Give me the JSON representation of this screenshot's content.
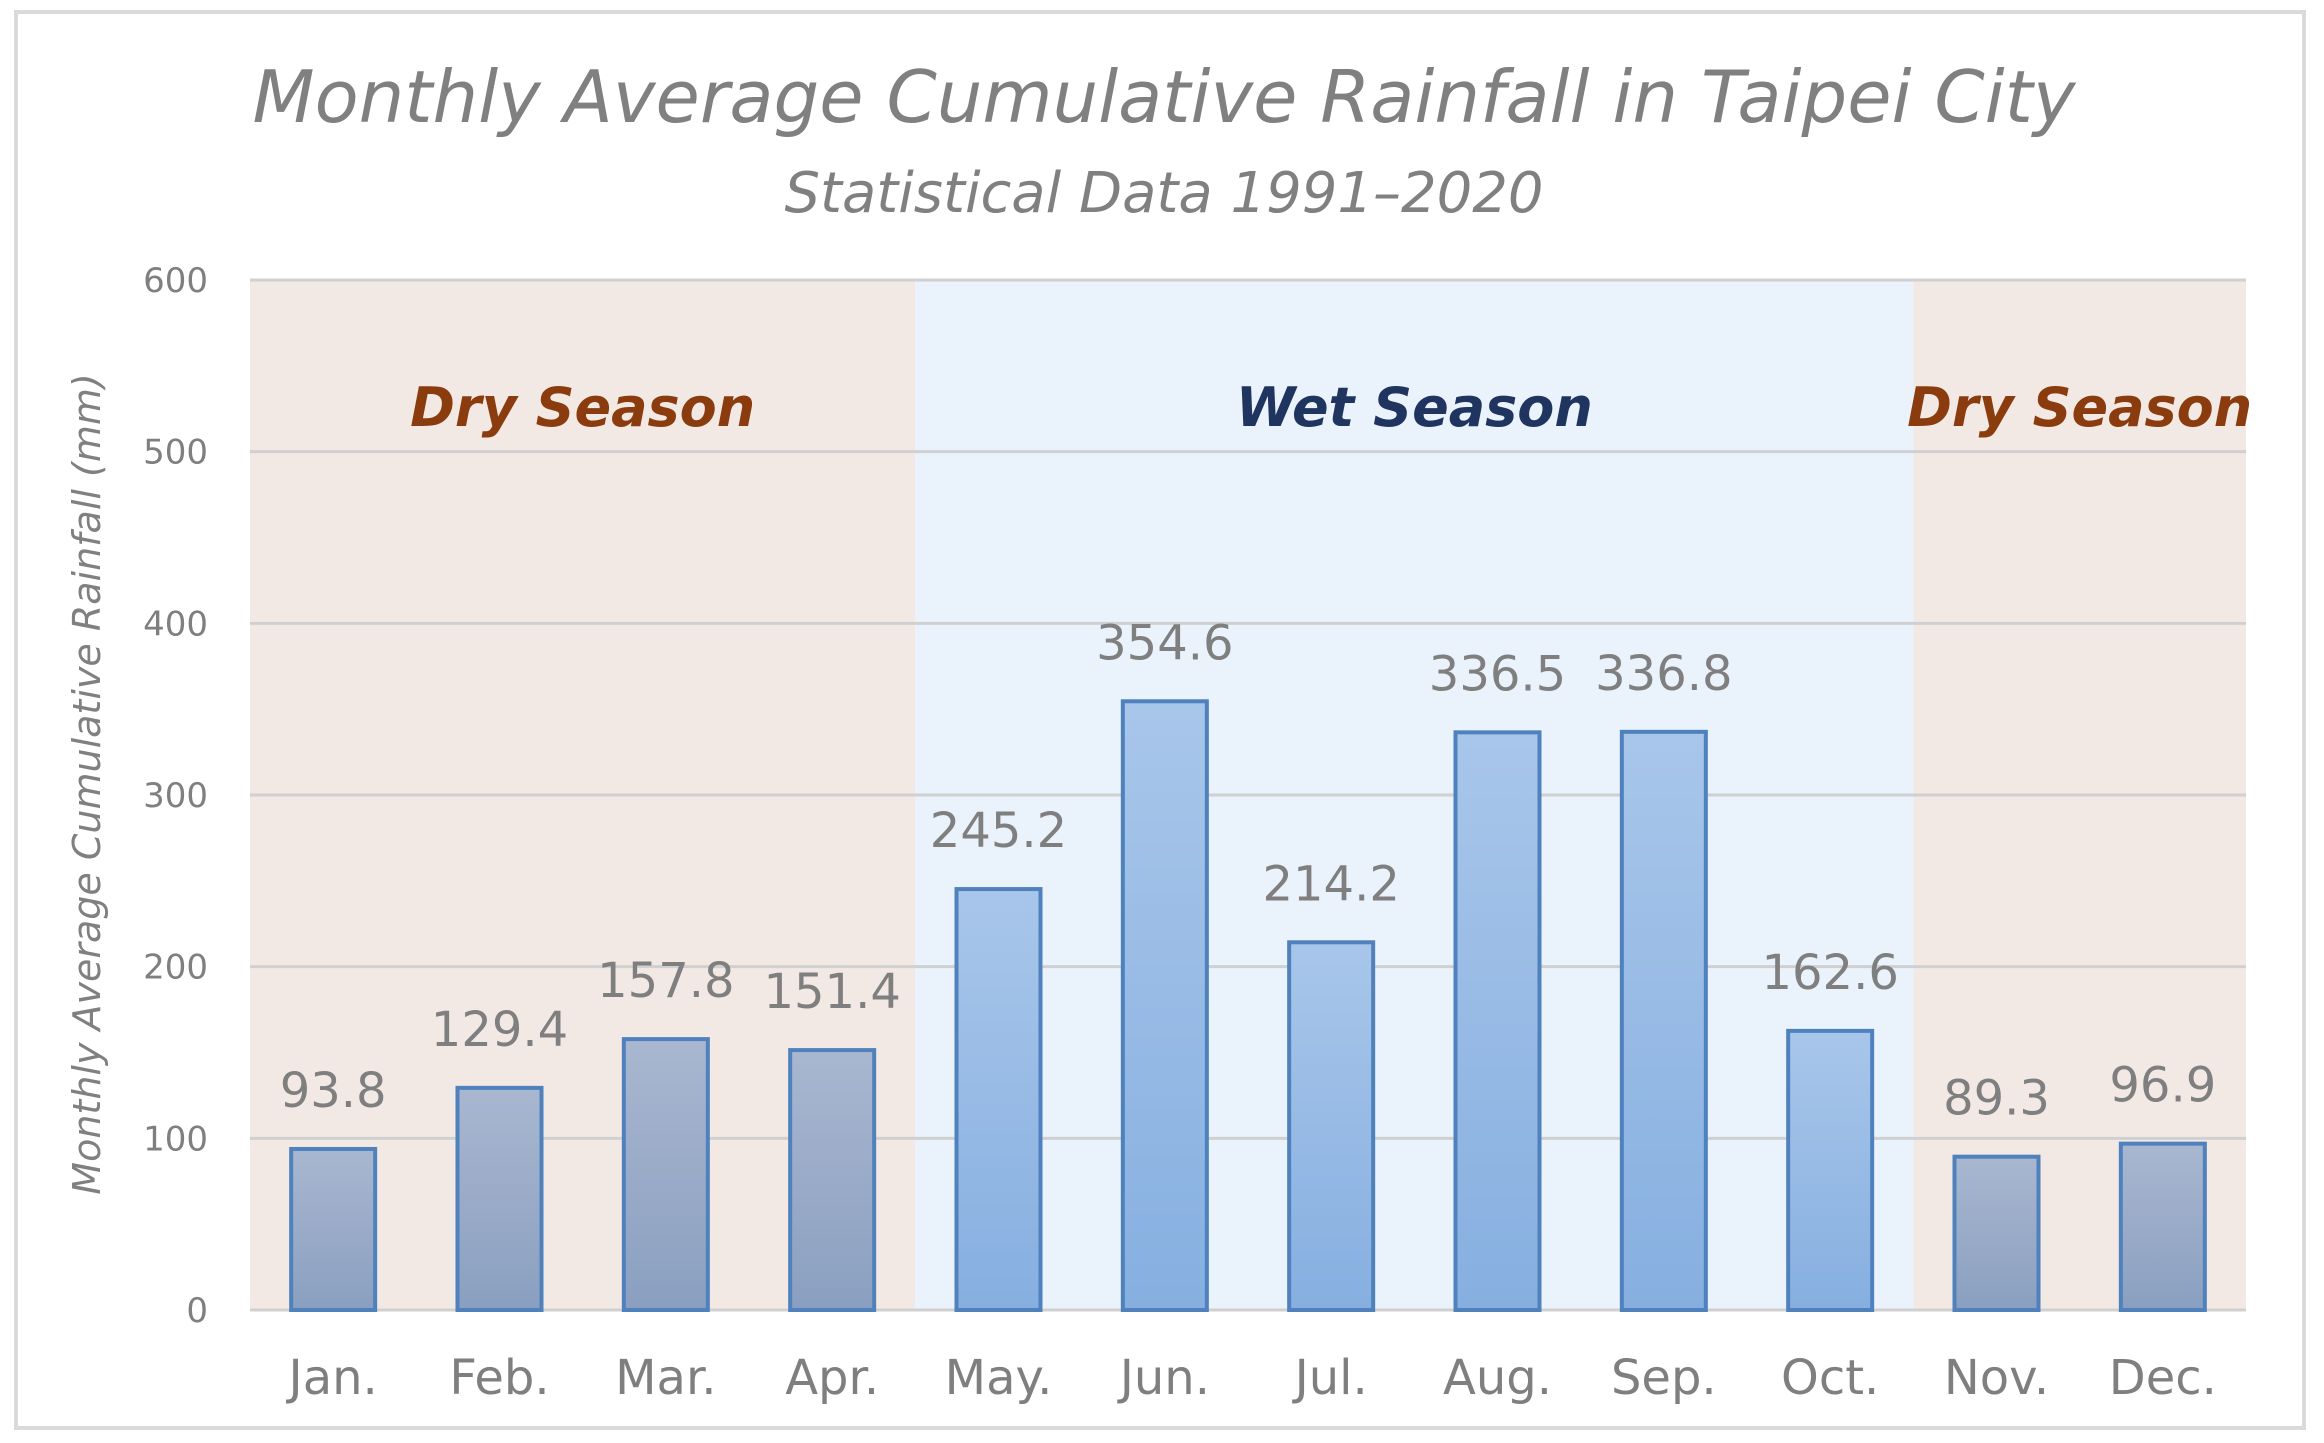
{
  "chart_data": {
    "type": "bar",
    "title": "Monthly Average Cumulative Rainfall in Taipei City",
    "subtitle": "Statistical Data 1991–2020",
    "xlabel": "",
    "ylabel": "Monthly Average Cumulative Rainfall (mm)",
    "ylim": [
      0,
      600
    ],
    "yticks": [
      "0",
      "100",
      "200",
      "300",
      "400",
      "500",
      "600"
    ],
    "grid": true,
    "categories": [
      "Jan.",
      "Feb.",
      "Mar.",
      "Apr.",
      "May.",
      "Jun.",
      "Jul.",
      "Aug.",
      "Sep.",
      "Oct.",
      "Nov.",
      "Dec."
    ],
    "values": [
      93.8,
      129.4,
      157.8,
      151.4,
      245.2,
      354.6,
      214.2,
      336.5,
      336.8,
      162.6,
      89.3,
      96.9
    ],
    "data_labels": [
      "93.8",
      "129.4",
      "157.8",
      "151.4",
      "245.2",
      "354.6",
      "214.2",
      "336.5",
      "336.8",
      "162.6",
      "89.3",
      "96.9"
    ],
    "seasons": [
      {
        "label": "Dry Season",
        "from": 0,
        "to": 3,
        "kind": "dry"
      },
      {
        "label": "Wet Season",
        "from": 4,
        "to": 9,
        "kind": "wet"
      },
      {
        "label": "Dry Season",
        "from": 10,
        "to": 11,
        "kind": "dry"
      }
    ],
    "colors": {
      "dry_band": "#f2e9e4",
      "wet_band": "#eaf2fb",
      "dry_text": "#8b3c0e",
      "wet_text": "#1f3560",
      "dry_bar_top": "#a9b7d0",
      "dry_bar_bottom": "#8a9fc0",
      "wet_bar_top": "#a8c6ea",
      "wet_bar_bottom": "#86afe0",
      "bar_stroke": "#4f81bd",
      "grid": "#d0d0d0"
    }
  }
}
